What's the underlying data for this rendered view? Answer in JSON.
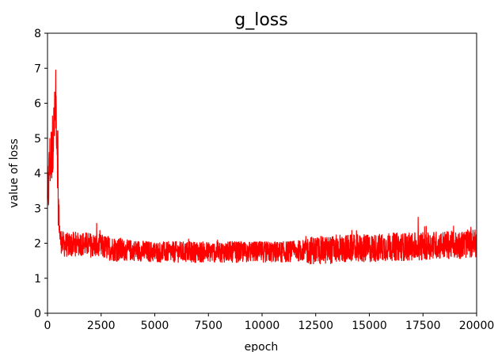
{
  "chart_data": {
    "type": "line",
    "title": "g_loss",
    "xlabel": "epoch",
    "ylabel": "value of loss",
    "xlim": [
      0,
      20000
    ],
    "ylim": [
      0,
      8
    ],
    "xticks": [
      0,
      2500,
      5000,
      7500,
      10000,
      12500,
      15000,
      17500,
      20000
    ],
    "xtick_labels": [
      "0",
      "2500",
      "5000",
      "7500",
      "10000",
      "12500",
      "15000",
      "17500",
      "20000"
    ],
    "yticks": [
      0,
      1,
      2,
      3,
      4,
      5,
      6,
      7,
      8
    ],
    "ytick_labels": [
      "0",
      "1",
      "2",
      "3",
      "4",
      "5",
      "6",
      "7",
      "8"
    ],
    "grid": false,
    "series": [
      {
        "color": "#ff0000",
        "description_points_x": [
          0,
          100,
          200,
          300,
          400,
          450,
          500,
          550,
          600,
          700,
          800,
          1000,
          1500,
          2000,
          2500,
          3000,
          3500,
          4000,
          5000,
          6000,
          7000,
          8000,
          9000,
          10000,
          11000,
          12000,
          13000,
          14000,
          15000,
          16000,
          17000,
          18000,
          19000,
          20000
        ],
        "description_points_y": [
          3.0,
          4.3,
          4.6,
          5.3,
          5.9,
          5.0,
          3.4,
          2.5,
          2.1,
          2.0,
          1.95,
          1.95,
          2.0,
          1.95,
          1.9,
          1.85,
          1.8,
          1.8,
          1.75,
          1.75,
          1.75,
          1.75,
          1.75,
          1.75,
          1.75,
          1.8,
          1.8,
          1.85,
          1.85,
          1.9,
          1.9,
          1.95,
          1.95,
          2.0
        ],
        "noise_band": [
          {
            "x": [
              0,
              500
            ],
            "spread": 0.9
          },
          {
            "x": [
              500,
              3500
            ],
            "spread": 0.35
          },
          {
            "x": [
              3500,
              12000
            ],
            "spread": 0.3
          },
          {
            "x": [
              12000,
              20000
            ],
            "spread": 0.4
          }
        ]
      }
    ]
  }
}
